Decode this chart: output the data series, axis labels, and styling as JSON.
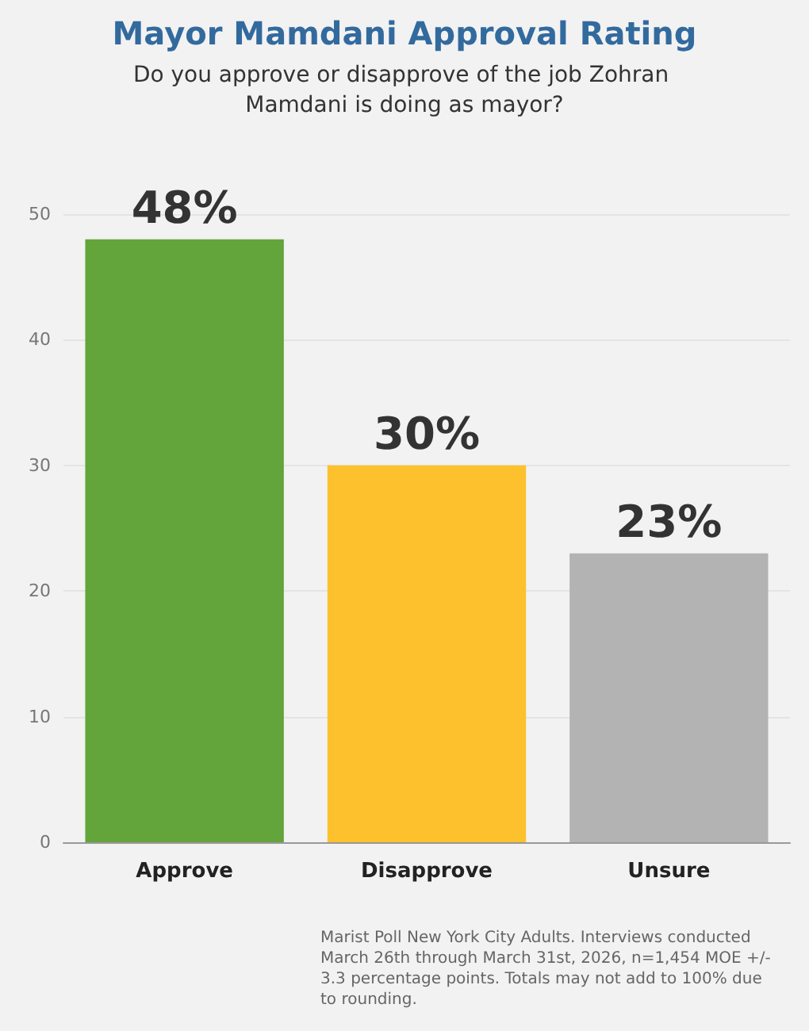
{
  "chart_data": {
    "type": "bar",
    "title": "Mayor Mamdani Approval Rating",
    "subtitle": "Do you approve or disapprove of the job Zohran Mamdani is doing as mayor?",
    "categories": [
      "Approve",
      "Disapprove",
      "Unsure"
    ],
    "values": [
      48,
      30,
      23
    ],
    "colors": [
      "#63a43b",
      "#fcc12c",
      "#b3b3b3"
    ],
    "value_labels": [
      "48%",
      "30%",
      "23%"
    ],
    "ylim": [
      0,
      50
    ],
    "yticks": [
      0,
      10,
      20,
      30,
      40,
      50
    ],
    "grid": "y",
    "annotations": [
      "Marist Poll New York City Adults. Interviews conducted March 26th through March 31st, 2026, n=1,454 MOE +/- 3.3 percentage points. Totals may not add to 100% due to rounding."
    ]
  }
}
